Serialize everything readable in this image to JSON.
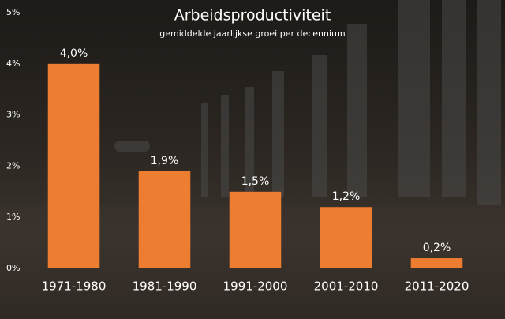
{
  "chart_data": {
    "type": "bar",
    "title": "Arbeidsproductiviteit",
    "subtitle": "gemiddelde jaarlijkse groei per decennium",
    "categories": [
      "1971-1980",
      "1981-1990",
      "1991-2000",
      "2001-2010",
      "2011-2020"
    ],
    "values": [
      4.0,
      1.9,
      1.5,
      1.2,
      0.2
    ],
    "value_labels": [
      "4,0%",
      "1,9%",
      "1,5%",
      "1,2%",
      "0,2%"
    ],
    "color": "#ed7d31",
    "ylim": [
      0,
      5
    ],
    "yticks": [
      {
        "value": 0,
        "label": "0%"
      },
      {
        "value": 1,
        "label": "1%"
      },
      {
        "value": 2,
        "label": "2%"
      },
      {
        "value": 3,
        "label": "3%"
      },
      {
        "value": 4,
        "label": "4%"
      },
      {
        "value": 5,
        "label": "5%"
      }
    ],
    "grid": false
  }
}
